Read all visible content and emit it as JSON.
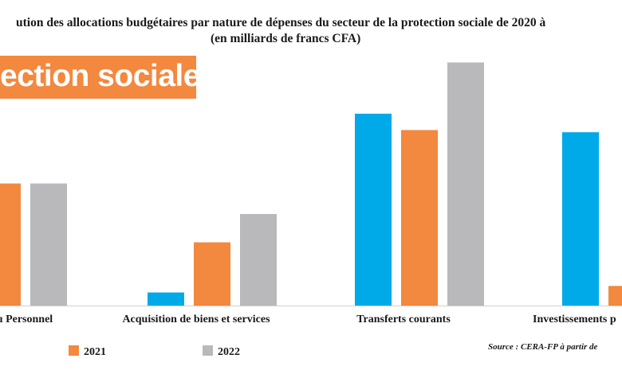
{
  "title": {
    "line1": "ution des allocations budgétaires par nature de dépenses du secteur de la protection sociale de 2020 à",
    "line2": "(en milliards de francs CFA)"
  },
  "banner": {
    "text": "ection sociale"
  },
  "source": "Source : CERA-FP à partir de",
  "colors": {
    "2020": "#00a9e8",
    "2021": "#f3883f",
    "2022": "#b9b9bb",
    "banner": "#f3883f"
  },
  "chart_data": {
    "type": "bar",
    "categories": [
      "du Personnel",
      "Acquisition de biens et services",
      "Transferts courants",
      "Investissements p"
    ],
    "series": [
      {
        "name": "",
        "values": [
          null,
          1.2,
          17.6,
          15.9
        ]
      },
      {
        "name": "2021",
        "values": [
          11.2,
          5.8,
          16.1,
          1.8
        ]
      },
      {
        "name": "2022",
        "values": [
          11.2,
          8.4,
          22.3,
          null
        ]
      }
    ],
    "ylim": [
      0,
      25
    ],
    "legend": [
      {
        "label": "2021"
      },
      {
        "label": "2022"
      }
    ],
    "legend_position": "bottom"
  }
}
